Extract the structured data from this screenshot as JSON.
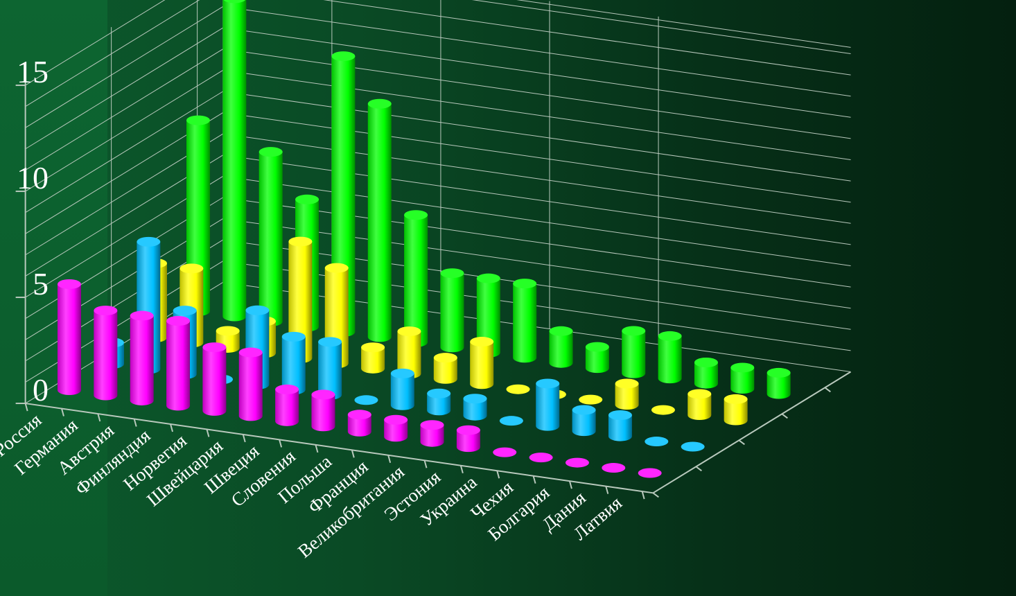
{
  "chart_data": {
    "type": "bar",
    "style": "3d-cylinder",
    "categories": [
      "Россия",
      "Германия",
      "Австрия",
      "Финляндия",
      "Норвегия",
      "Швейцария",
      "Швеция",
      "Словения",
      "Польша",
      "Франция",
      "Великобритания",
      "Эстония",
      "Украина",
      "Чехия",
      "Болгария",
      "Дания",
      "Латвия"
    ],
    "series": [
      {
        "color": "#ff00ff",
        "values": [
          5,
          4,
          4,
          4,
          3,
          3,
          1.5,
          1.5,
          0.8,
          0.8,
          0.8,
          0.8,
          0,
          0,
          0,
          0,
          0
        ]
      },
      {
        "color": "#00bfff",
        "values": [
          1,
          6,
          3,
          0,
          3.5,
          2.5,
          2.5,
          0,
          1.5,
          0.8,
          0.8,
          0,
          2,
          1,
          1,
          0,
          0
        ]
      },
      {
        "color": "#ffff00",
        "values": [
          3.5,
          3.5,
          0.8,
          1.5,
          5.5,
          4.5,
          1,
          2,
          1,
          2,
          0,
          0,
          0,
          1,
          0,
          1,
          1
        ]
      },
      {
        "color": "#00ff00",
        "values": [
          9,
          15,
          8,
          6,
          13,
          11,
          6,
          3.5,
          3.5,
          3.5,
          1.5,
          1,
          2,
          2,
          1,
          1,
          1
        ]
      }
    ],
    "y_ticks": [
      "0",
      "5",
      "10",
      "15"
    ],
    "ylim": [
      0,
      15
    ],
    "grid": true,
    "legend": false
  }
}
